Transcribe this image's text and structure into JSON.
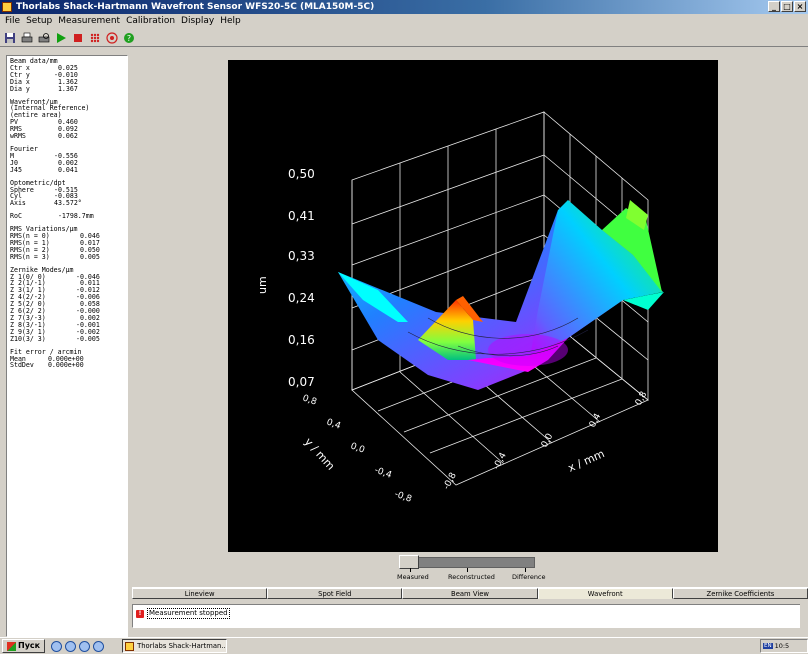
{
  "window": {
    "title": "Thorlabs Shack-Hartmann Wavefront Sensor WFS20-5C (MLA150M-5C)",
    "controls": [
      "_",
      "□",
      "×"
    ]
  },
  "menu": [
    "File",
    "Setup",
    "Measurement",
    "Calibration",
    "Display",
    "Help"
  ],
  "toolbar": {
    "icons": [
      "save-icon",
      "print-icon",
      "print-preview-icon",
      "play-icon",
      "stop-icon",
      "spot-grid-icon",
      "target-icon",
      "help-icon"
    ],
    "colors": {
      "play": "#10a010",
      "stop": "#d02020",
      "accent": "#d02020"
    }
  },
  "left_panel": {
    "beam": {
      "header": "Beam data/mm",
      "rows": [
        {
          "k": "Ctr x",
          "v": "  0.025"
        },
        {
          "k": "Ctr y",
          "v": " -0.010"
        },
        {
          "k": "Dia x",
          "v": "  1.362"
        },
        {
          "k": "Dia y",
          "v": "  1.367"
        }
      ]
    },
    "wavefront": {
      "header": "Wavefront/µm",
      "sub1": "(Internal Reference)",
      "sub2": "(entire area)",
      "rows": [
        {
          "k": "PV",
          "v": "  0.460"
        },
        {
          "k": "RMS",
          "v": "  0.092"
        },
        {
          "k": "wRMS",
          "v": "  0.062"
        }
      ]
    },
    "fourier": {
      "header": "Fourier",
      "rows": [
        {
          "k": "M",
          "v": " -0.556"
        },
        {
          "k": "J0",
          "v": "  0.002"
        },
        {
          "k": "J45",
          "v": "  0.041"
        }
      ]
    },
    "optometric": {
      "header": "Optometric/dpt",
      "rows": [
        {
          "k": "Sphere",
          "v": " -0.515"
        },
        {
          "k": "Cyl",
          "v": " -0.083"
        },
        {
          "k": "Axis",
          "v": " 43.572°"
        }
      ]
    },
    "roc": {
      "k": "RoC",
      "v": "  -1798.7mm"
    },
    "rms_var": {
      "header": "RMS Variations/µm",
      "rows": [
        {
          "k": "RMS(n = 0)",
          "v": "  0.046"
        },
        {
          "k": "RMS(n = 1)",
          "v": "  0.017"
        },
        {
          "k": "RMS(n = 2)",
          "v": "  0.050"
        },
        {
          "k": "RMS(n = 3)",
          "v": "  0.005"
        }
      ]
    },
    "zernike": {
      "header": "Zernike Modes/µm",
      "rows": [
        {
          "k": "Z 1(0/ 0)",
          "v": " -0.046"
        },
        {
          "k": "Z 2(1/-1)",
          "v": "  0.011"
        },
        {
          "k": "Z 3(1/ 1)",
          "v": " -0.012"
        },
        {
          "k": "Z 4(2/-2)",
          "v": " -0.006"
        },
        {
          "k": "Z 5(2/ 0)",
          "v": "  0.058"
        },
        {
          "k": "Z 6(2/ 2)",
          "v": " -0.000"
        },
        {
          "k": "Z 7(3/-3)",
          "v": "  0.002"
        },
        {
          "k": "Z 8(3/-1)",
          "v": " -0.001"
        },
        {
          "k": "Z 9(3/ 1)",
          "v": " -0.002"
        },
        {
          "k": "Z10(3/ 3)",
          "v": " -0.005"
        }
      ]
    },
    "fit": {
      "header": "Fit error / arcmin",
      "rows": [
        {
          "k": "Mean",
          "v": "  0.000e+00"
        },
        {
          "k": "StdDev",
          "v": "  0.000e+00"
        }
      ]
    }
  },
  "plot": {
    "z_label": "um",
    "z_ticks": [
      "0,50",
      "0,41",
      "0,33",
      "0,24",
      "0,16",
      "0,07"
    ],
    "y_label": "y / mm",
    "y_ticks": [
      "0,8",
      "0,4",
      "0,0",
      "-0,4",
      "-0,8"
    ],
    "x_label": "x / mm",
    "x_ticks": [
      "-0,8",
      "-0,4",
      "0,0",
      "0,4",
      "0,8"
    ]
  },
  "view_slider": {
    "labels": [
      "Measured",
      "Reconstructed",
      "Difference"
    ],
    "selected": "Measured"
  },
  "tabs": [
    {
      "label": "Lineview",
      "active": false
    },
    {
      "label": "Spot Field",
      "active": false
    },
    {
      "label": "Beam View",
      "active": false
    },
    {
      "label": "Wavefront",
      "active": true
    },
    {
      "label": "Zernike Coefficients",
      "active": false
    }
  ],
  "status": {
    "message": "Measurement stopped"
  },
  "taskbar": {
    "start_label": "Пуск",
    "task_label": "Thorlabs Shack-Hartman...",
    "tray_lang": "EN",
    "clock": "10:5"
  }
}
